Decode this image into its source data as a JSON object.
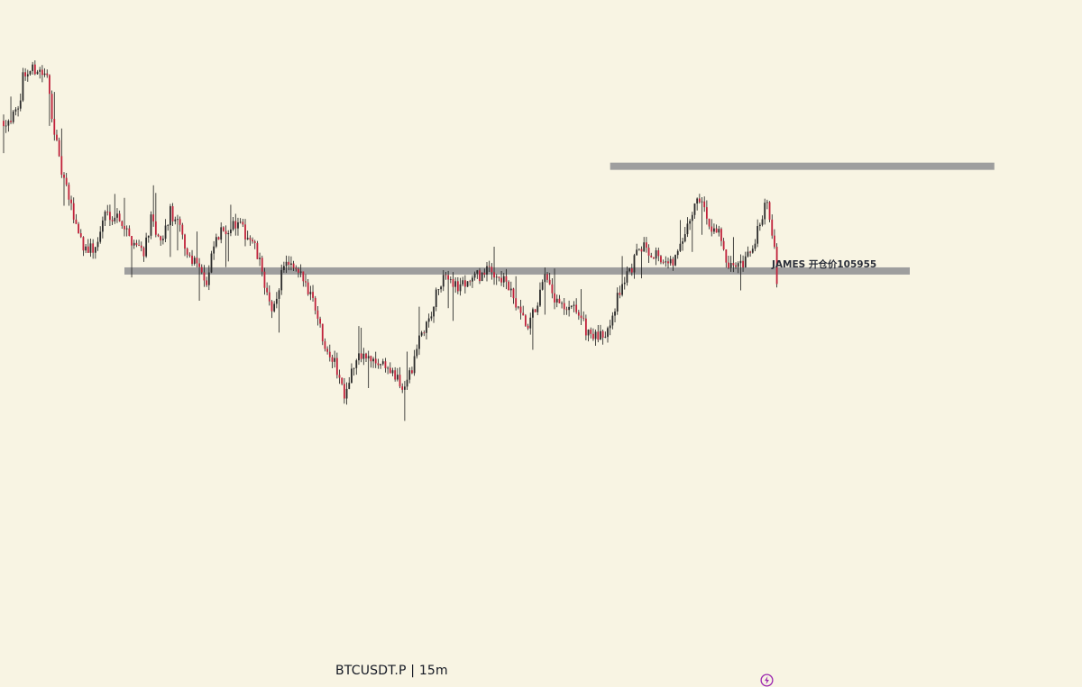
{
  "chart_data": {
    "type": "candlestick",
    "symbol": "BTCUSDT.P",
    "interval": "15m",
    "label": "BTCUSDT.P  |  15m",
    "annotation": "JAMES 开仓价105955",
    "ylim": [
      102250,
      107300
    ],
    "levels": [
      {
        "name": "resistance-level",
        "price": 105955,
        "from_candle": 251,
        "to_candle": 410
      },
      {
        "name": "support-level",
        "price": 104700,
        "from_candle": 50,
        "to_candle": 375
      }
    ],
    "colors": {
      "background": "#f8f4e3",
      "up": "#2a2a2a",
      "down": "#c0213a",
      "wick": "#1a1a1a",
      "level": "#9e9e9e",
      "icon": "#9c27b0"
    },
    "path": [
      [
        0,
        106500
      ],
      [
        6,
        106580
      ],
      [
        8,
        107050
      ],
      [
        14,
        107130
      ],
      [
        18,
        107000
      ],
      [
        23,
        106000
      ],
      [
        28,
        105450
      ],
      [
        33,
        105000
      ],
      [
        38,
        104950
      ],
      [
        42,
        105400
      ],
      [
        48,
        105350
      ],
      [
        52,
        105100
      ],
      [
        58,
        104950
      ],
      [
        61,
        105300
      ],
      [
        65,
        105000
      ],
      [
        69,
        105400
      ],
      [
        73,
        105200
      ],
      [
        76,
        104900
      ],
      [
        81,
        104800
      ],
      [
        84,
        104500
      ],
      [
        87,
        105000
      ],
      [
        91,
        105200
      ],
      [
        97,
        105250
      ],
      [
        100,
        105150
      ],
      [
        103,
        105050
      ],
      [
        107,
        104700
      ],
      [
        111,
        104150
      ],
      [
        113,
        104400
      ],
      [
        116,
        104800
      ],
      [
        120,
        104700
      ],
      [
        124,
        104600
      ],
      [
        128,
        104400
      ],
      [
        132,
        103900
      ],
      [
        137,
        103600
      ],
      [
        141,
        103250
      ],
      [
        144,
        103500
      ],
      [
        148,
        103700
      ],
      [
        153,
        103600
      ],
      [
        157,
        103600
      ],
      [
        160,
        103500
      ],
      [
        165,
        103300
      ],
      [
        169,
        103500
      ],
      [
        172,
        103900
      ],
      [
        176,
        104100
      ],
      [
        180,
        104500
      ],
      [
        184,
        104650
      ],
      [
        188,
        104500
      ],
      [
        193,
        104600
      ],
      [
        197,
        104650
      ],
      [
        201,
        104700
      ],
      [
        205,
        104650
      ],
      [
        209,
        104500
      ],
      [
        213,
        104200
      ],
      [
        217,
        104000
      ],
      [
        220,
        104250
      ],
      [
        224,
        104600
      ],
      [
        228,
        104350
      ],
      [
        233,
        104200
      ],
      [
        237,
        104250
      ],
      [
        241,
        104000
      ],
      [
        245,
        103900
      ],
      [
        248,
        103900
      ],
      [
        252,
        104200
      ],
      [
        256,
        104550
      ],
      [
        260,
        104750
      ],
      [
        264,
        105000
      ],
      [
        267,
        104950
      ],
      [
        271,
        104900
      ],
      [
        275,
        104750
      ],
      [
        279,
        104900
      ],
      [
        283,
        105200
      ],
      [
        286,
        105500
      ],
      [
        288,
        105600
      ],
      [
        292,
        105250
      ],
      [
        296,
        105200
      ],
      [
        299,
        104750
      ],
      [
        303,
        104700
      ],
      [
        307,
        104800
      ],
      [
        311,
        105050
      ],
      [
        314,
        105400
      ],
      [
        316,
        105550
      ],
      [
        319,
        105000
      ],
      [
        320,
        104500
      ]
    ]
  }
}
